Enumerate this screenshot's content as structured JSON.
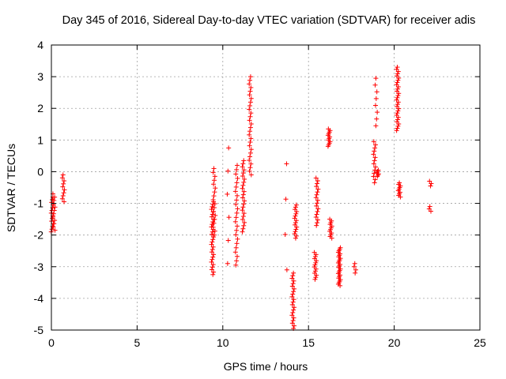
{
  "chart_data": {
    "type": "scatter",
    "title": "Day 345 of 2016, Sidereal Day-to-day VTEC variation (SDTVAR) for receiver adis",
    "xlabel": "GPS time / hours",
    "ylabel": "SDTVAR / TECUs",
    "xlim": [
      0,
      25
    ],
    "ylim": [
      -5,
      4
    ],
    "xticks": [
      0,
      5,
      10,
      15,
      20,
      25
    ],
    "yticks": [
      -5,
      -4,
      -3,
      -2,
      -1,
      0,
      1,
      2,
      3,
      4
    ],
    "grid": true,
    "marker": "+",
    "color": "#ff0000",
    "clusters": [
      {
        "x": 0.05,
        "y_min": -1.9,
        "y_max": -0.8,
        "n": 14
      },
      {
        "x": 0.15,
        "y_min": -1.85,
        "y_max": -0.7,
        "n": 12
      },
      {
        "x": 0.7,
        "y_min": -0.95,
        "y_max": -0.1,
        "n": 10
      },
      {
        "x": 9.4,
        "y_min": -3.25,
        "y_max": -0.95,
        "n": 30
      },
      {
        "x": 9.5,
        "y_min": -2.0,
        "y_max": 0.1,
        "n": 18
      },
      {
        "x": 10.3,
        "y_min": -2.9,
        "y_max": 0.75,
        "n": 6
      },
      {
        "x": 10.8,
        "y_min": -2.95,
        "y_max": 0.2,
        "n": 24
      },
      {
        "x": 11.2,
        "y_min": -1.9,
        "y_max": 0.35,
        "n": 24
      },
      {
        "x": 11.6,
        "y_min": -0.1,
        "y_max": 3.0,
        "n": 28
      },
      {
        "x": 13.7,
        "y_min": -3.1,
        "y_max": 0.25,
        "n": 4
      },
      {
        "x": 14.1,
        "y_min": -4.95,
        "y_max": -3.2,
        "n": 22
      },
      {
        "x": 14.25,
        "y_min": -2.1,
        "y_max": -1.05,
        "n": 16
      },
      {
        "x": 15.4,
        "y_min": -3.4,
        "y_max": -2.55,
        "n": 14
      },
      {
        "x": 15.5,
        "y_min": -1.7,
        "y_max": -0.2,
        "n": 18
      },
      {
        "x": 16.2,
        "y_min": 0.8,
        "y_max": 1.35,
        "n": 12
      },
      {
        "x": 16.3,
        "y_min": -2.1,
        "y_max": -1.5,
        "n": 12
      },
      {
        "x": 16.8,
        "y_min": -3.6,
        "y_max": -2.4,
        "n": 26
      },
      {
        "x": 17.7,
        "y_min": -3.2,
        "y_max": -2.9,
        "n": 4
      },
      {
        "x": 18.85,
        "y_min": -0.35,
        "y_max": 0.95,
        "n": 14
      },
      {
        "x": 18.95,
        "y_min": 1.45,
        "y_max": 2.95,
        "n": 8
      },
      {
        "x": 19.05,
        "y_min": -0.15,
        "y_max": 0.05,
        "n": 6
      },
      {
        "x": 20.2,
        "y_min": 1.3,
        "y_max": 3.3,
        "n": 30
      },
      {
        "x": 20.3,
        "y_min": -0.8,
        "y_max": -0.35,
        "n": 10
      },
      {
        "x": 22.1,
        "y_min": -1.25,
        "y_max": -1.1,
        "n": 3
      },
      {
        "x": 22.1,
        "y_min": -0.45,
        "y_max": -0.3,
        "n": 3
      }
    ]
  }
}
